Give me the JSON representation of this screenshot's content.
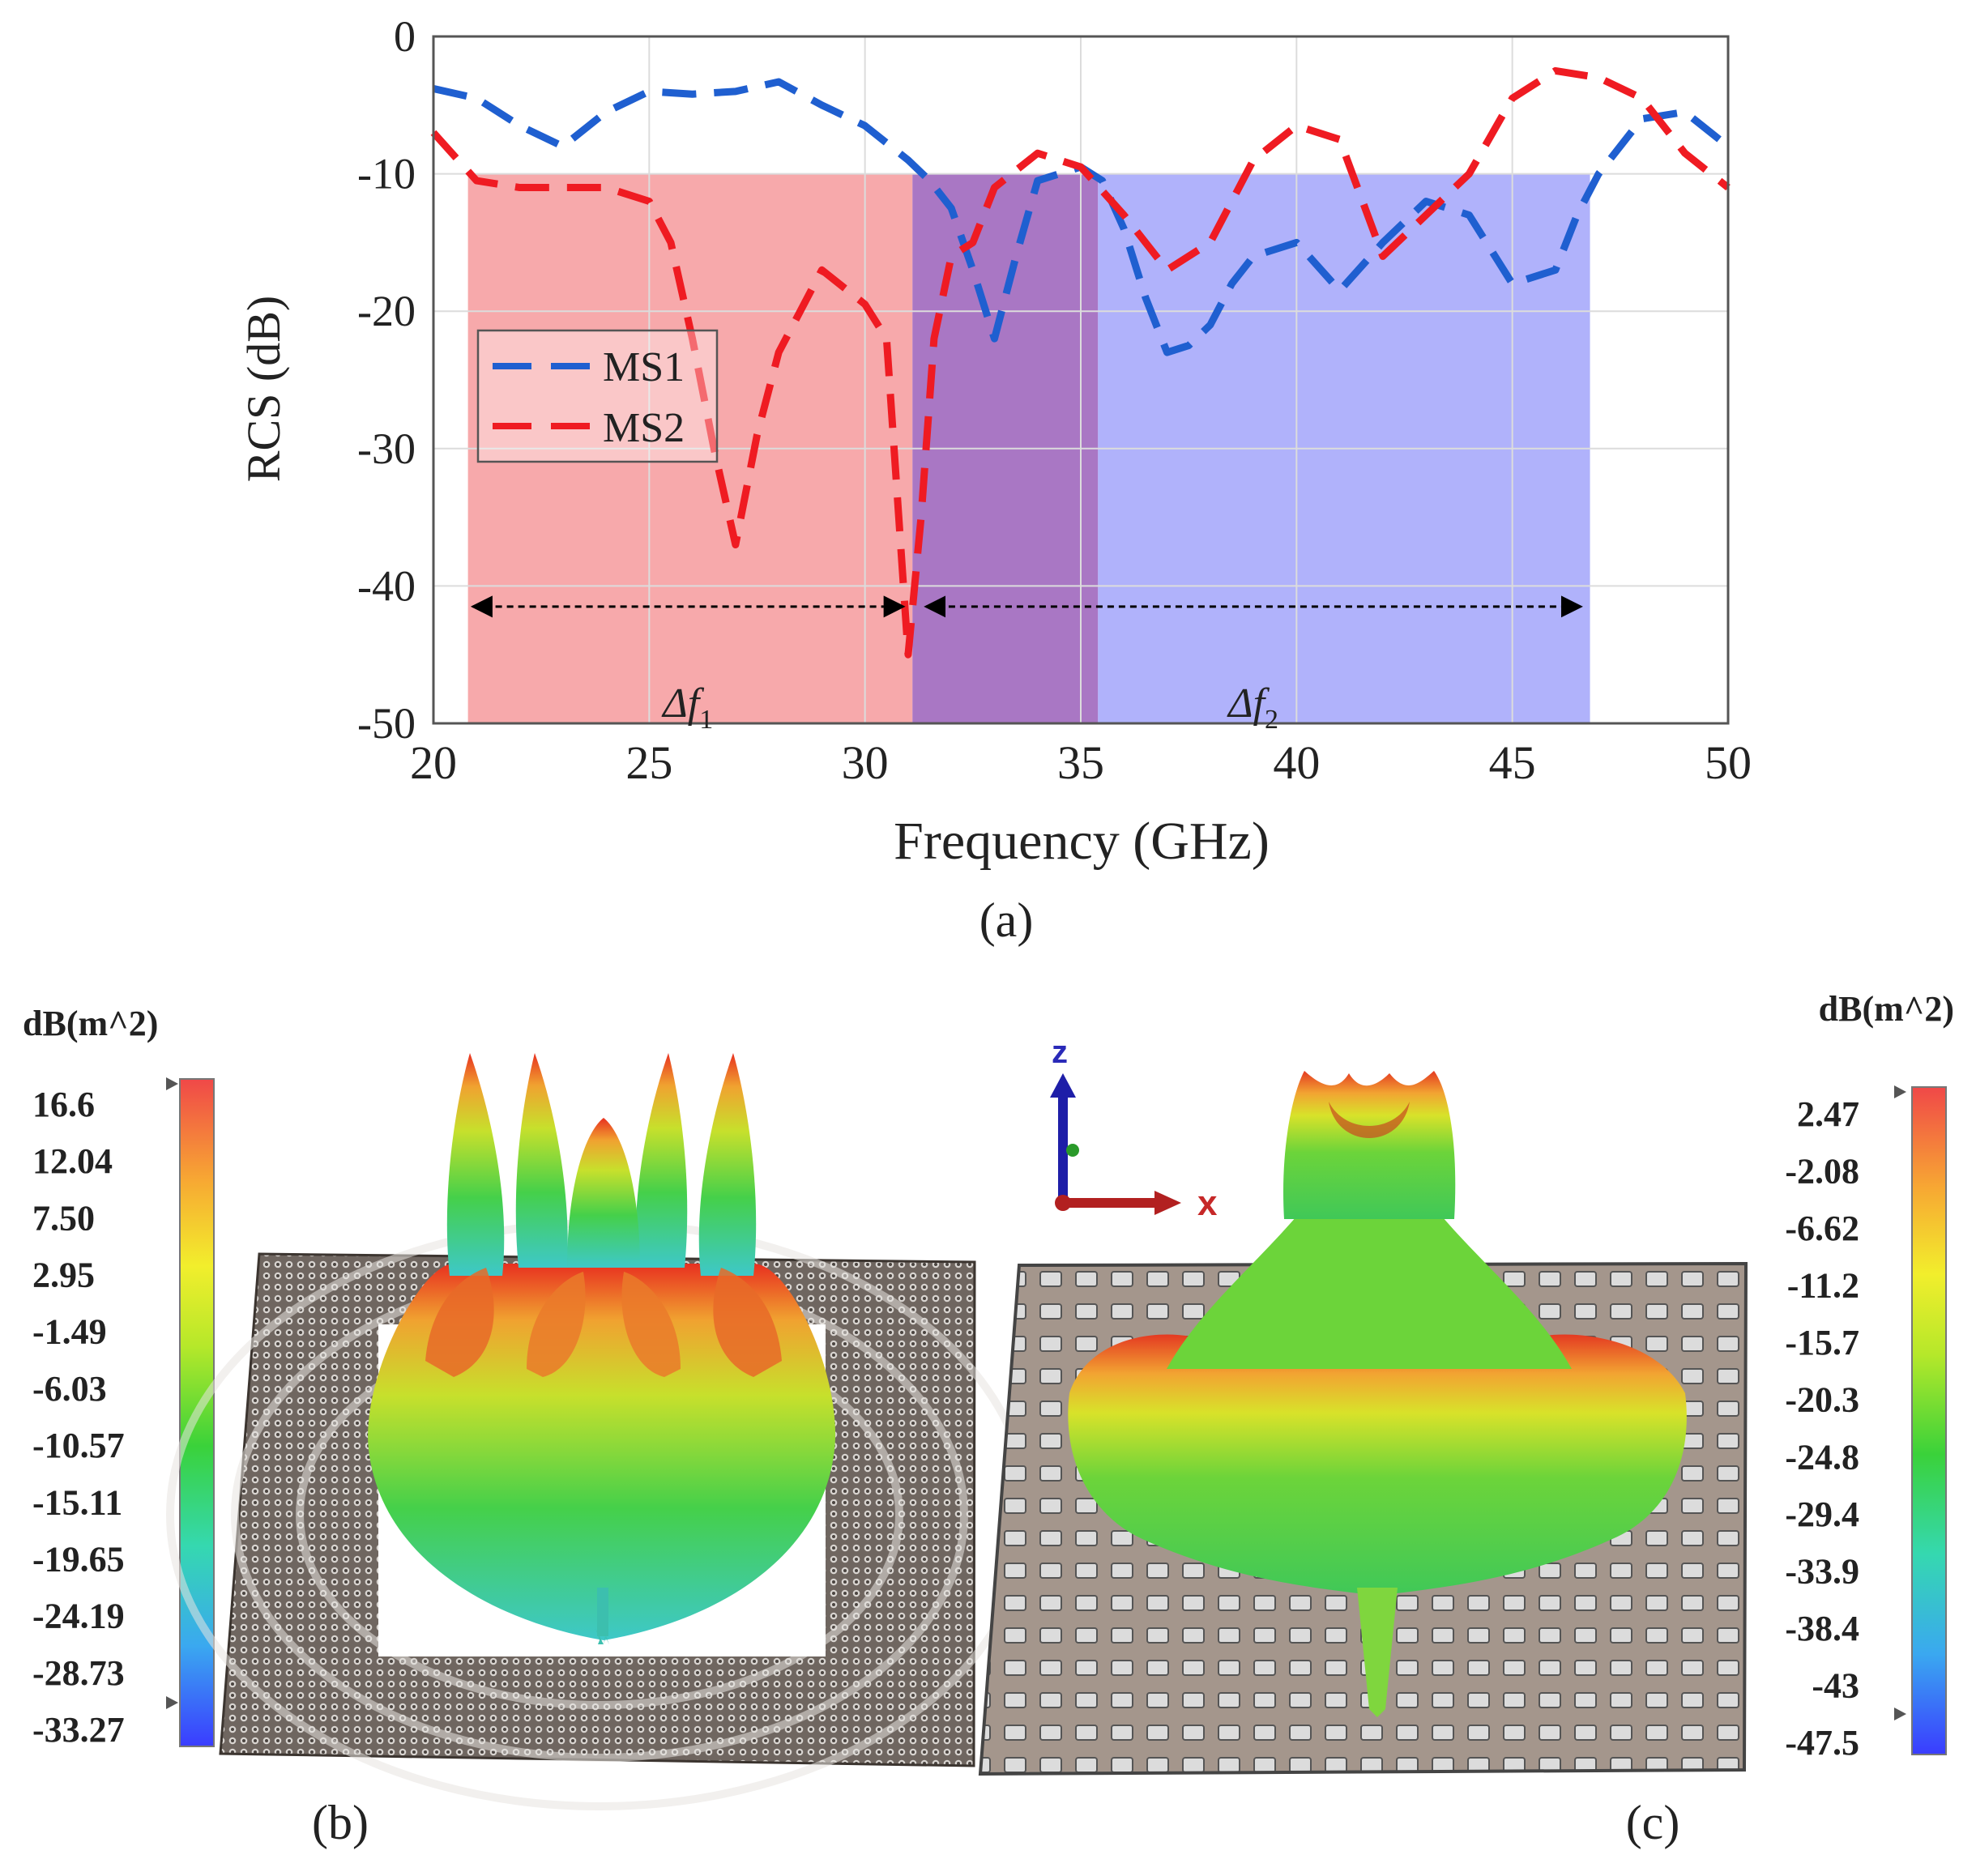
{
  "chart_data": [
    {
      "panel": "a",
      "type": "line",
      "title": "",
      "xlabel": "Frequency (GHz)",
      "ylabel": "RCS (dB)",
      "xlim": [
        20,
        50
      ],
      "ylim": [
        -50,
        0
      ],
      "xticks": [
        20,
        25,
        30,
        35,
        40,
        45,
        50
      ],
      "yticks": [
        0,
        -10,
        -20,
        -30,
        -40,
        -50
      ],
      "grid": true,
      "legend_position": "center-left",
      "series": [
        {
          "name": "MS1",
          "color": "#1f5fd0",
          "style": "dashed",
          "x": [
            20,
            21,
            22,
            23,
            24,
            25,
            26,
            27,
            28,
            29,
            30,
            31,
            31.5,
            32,
            32.5,
            33,
            33.5,
            34,
            35,
            35.5,
            36,
            36.5,
            37,
            37.5,
            38,
            38.5,
            39,
            40,
            41,
            42,
            43,
            44,
            45,
            46,
            46.5,
            47,
            48,
            49,
            50
          ],
          "y": [
            -3.8,
            -4.5,
            -6.5,
            -8.0,
            -5.5,
            -4.0,
            -4.2,
            -4.0,
            -3.3,
            -5.0,
            -6.5,
            -9.0,
            -10.5,
            -12.5,
            -17,
            -22,
            -16,
            -10.5,
            -9.5,
            -10.5,
            -14,
            -19,
            -23,
            -22.5,
            -21,
            -18,
            -16,
            -15,
            -18.5,
            -15,
            -12,
            -13,
            -18,
            -17,
            -13,
            -10,
            -6,
            -5.5,
            -8
          ]
        },
        {
          "name": "MS2",
          "color": "#ef1b22",
          "style": "dashed",
          "x": [
            20,
            21,
            22,
            23,
            24,
            25,
            25.5,
            26,
            26.5,
            27,
            27.5,
            28,
            29,
            30,
            30.5,
            31,
            31.3,
            31.6,
            32,
            32.5,
            33,
            34,
            35,
            36,
            37,
            38,
            39,
            40,
            41,
            42,
            43,
            44,
            45,
            46,
            47,
            48,
            49,
            50
          ],
          "y": [
            -7,
            -10.5,
            -11,
            -11,
            -11,
            -12,
            -15,
            -22,
            -30,
            -37,
            -29,
            -23,
            -17,
            -19.5,
            -22,
            -45,
            -35,
            -22,
            -16,
            -15,
            -11,
            -8.5,
            -9.5,
            -13,
            -17,
            -15,
            -9,
            -6.5,
            -7.5,
            -16,
            -13,
            -10,
            -4.5,
            -2.5,
            -3.0,
            -4.5,
            -8.5,
            -11
          ]
        }
      ],
      "shaded_bands": [
        {
          "x": [
            20.8,
            31.1
          ],
          "y": [
            -50,
            -10
          ],
          "color": "#f7a9ab"
        },
        {
          "x": [
            31.1,
            35.4
          ],
          "y": [
            -50,
            -10
          ],
          "color": "#a977c4"
        },
        {
          "x": [
            35.4,
            46.8
          ],
          "y": [
            -50,
            -10
          ],
          "color": "#b0b2fb"
        }
      ],
      "annotations": [
        {
          "label": "Δf",
          "sub": "1",
          "x": [
            20.8,
            31.0
          ],
          "y": -41.5
        },
        {
          "label": "Δf",
          "sub": "2",
          "x": [
            31.3,
            46.7
          ],
          "y": -41.5
        }
      ],
      "caption": "(a)"
    },
    {
      "panel": "b",
      "type": "other",
      "unit_label": "dB(m^2)",
      "colorbar_ticks": [
        "16.6",
        "12.04",
        "7.50",
        "2.95",
        "-1.49",
        "-6.03",
        "-10.57",
        "-15.11",
        "-19.65",
        "-24.19",
        "-28.73",
        "-33.27"
      ],
      "caption": "(b)"
    },
    {
      "panel": "c",
      "type": "other",
      "unit_label": "dB(m^2)",
      "colorbar_ticks": [
        "2.47",
        "-2.08",
        "-6.62",
        "-11.2",
        "-15.7",
        "-20.3",
        "-24.8",
        "-29.4",
        "-33.9",
        "-38.4",
        "-43",
        "-47.5"
      ],
      "axis_labels": {
        "z": "z",
        "x": "x"
      },
      "caption": "(c)"
    }
  ]
}
